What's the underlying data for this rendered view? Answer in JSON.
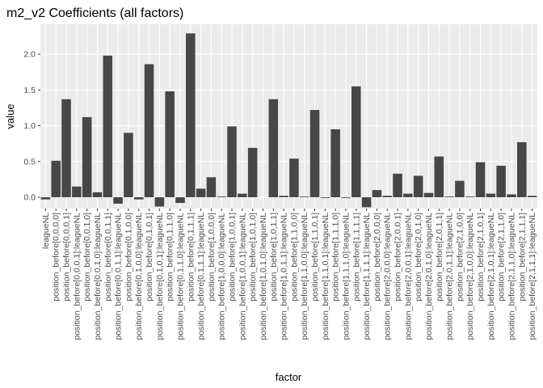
{
  "chart_data": {
    "type": "bar",
    "title": "m2_v2 Coefficients (all factors)",
    "x_label": "factor",
    "y_label": "value",
    "categories": [
      "leagueNL",
      "position_before[0,0,0,0]",
      "position_before[0,0,0,1]",
      "position_before[0,0,0,1]:leagueNL",
      "position_before[0,0,1,0]",
      "position_before[0,0,1,0]:leagueNL",
      "position_before[0,0,1,1]",
      "position_before[0,0,1,1]:leagueNL",
      "position_before[0,1,0,0]",
      "position_before[0,1,0,0]:leagueNL",
      "position_before[0,1,0,1]",
      "position_before[0,1,0,1]:leagueNL",
      "position_before[0,1,1,0]",
      "position_before[0,1,1,0]:leagueNL",
      "position_before[0,1,1,1]",
      "position_before[0,1,1,1]:leagueNL",
      "position_before[1,0,0,0]",
      "position_before[1,0,0,0]:leagueNL",
      "position_before[1,0,0,1]",
      "position_before[1,0,0,1]:leagueNL",
      "position_before[1,0,1,0]",
      "position_before[1,0,1,0]:leagueNL",
      "position_before[1,0,1,1]",
      "position_before[1,0,1,1]:leagueNL",
      "position_before[1,1,0,0]",
      "position_before[1,1,0,0]:leagueNL",
      "position_before[1,1,0,1]",
      "position_before[1,1,0,1]:leagueNL",
      "position_before[1,1,1,0]",
      "position_before[1,1,1,0]:leagueNL",
      "position_before[1,1,1,1]",
      "position_before[1,1,1,1]:leagueNL",
      "position_before[2,0,0,0]",
      "position_before[2,0,0,0]:leagueNL",
      "position_before[2,0,0,1]",
      "position_before[2,0,0,1]:leagueNL",
      "position_before[2,0,1,0]",
      "position_before[2,0,1,0]:leagueNL",
      "position_before[2,0,1,1]",
      "position_before[2,0,1,1]:leagueNL",
      "position_before[2,1,0,0]",
      "position_before[2,1,0,0]:leagueNL",
      "position_before[2,1,0,1]",
      "position_before[2,1,0,1]:leagueNL",
      "position_before[2,1,1,0]",
      "position_before[2,1,1,0]:leagueNL",
      "position_before[2,1,1,1]",
      "position_before[2,1,1,1]:leagueNL"
    ],
    "values": [
      -0.03,
      0.51,
      1.37,
      0.15,
      1.12,
      0.07,
      1.98,
      -0.09,
      0.9,
      -0.03,
      1.86,
      -0.13,
      1.48,
      -0.08,
      2.29,
      0.12,
      0.28,
      0.01,
      0.99,
      0.05,
      0.69,
      0.0,
      1.37,
      0.02,
      0.54,
      0.01,
      1.22,
      -0.01,
      0.95,
      -0.01,
      1.55,
      -0.14,
      0.1,
      0.02,
      0.33,
      0.05,
      0.3,
      0.06,
      0.57,
      0.01,
      0.23,
      0.01,
      0.49,
      0.05,
      0.44,
      0.04,
      0.77,
      0.02
    ],
    "color": "#474747",
    "ylim": [
      -0.158,
      2.418
    ],
    "yticks": [
      {
        "value": 0,
        "label": "0.0"
      },
      {
        "value": 0.5,
        "label": "0.5"
      },
      {
        "value": 1,
        "label": "1.0"
      },
      {
        "value": 1.5,
        "label": "1.5"
      },
      {
        "value": 2,
        "label": "2.0"
      }
    ],
    "grid": true
  }
}
